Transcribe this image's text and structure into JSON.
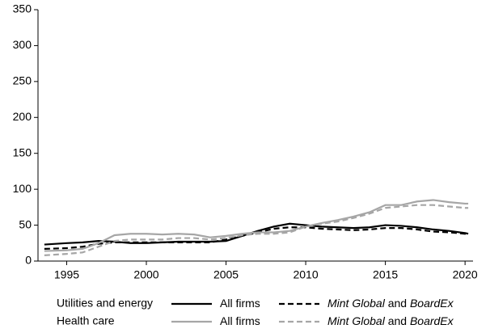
{
  "chart_data": {
    "type": "line",
    "x": [
      1993.6,
      1995,
      1996,
      1997,
      1998,
      1999,
      2000,
      2001,
      2002,
      2003,
      2004,
      2005,
      2006,
      2007,
      2008,
      2009,
      2010,
      2011,
      2012,
      2013,
      2014,
      2015,
      2016,
      2017,
      2018,
      2019,
      2020,
      2020.2
    ],
    "series": [
      {
        "row": 0,
        "column": 0,
        "color": "#000000",
        "dashed": false,
        "values": [
          23,
          25,
          26,
          28,
          27,
          25,
          25,
          26,
          27,
          27,
          27,
          28,
          35,
          42,
          48,
          52,
          50,
          48,
          47,
          46,
          47,
          50,
          49,
          47,
          44,
          42,
          39,
          38
        ]
      },
      {
        "row": 0,
        "column": 1,
        "color": "#000000",
        "dashed": true,
        "values": [
          17,
          18,
          20,
          24,
          26,
          26,
          26,
          26,
          26,
          26,
          26,
          30,
          35,
          40,
          45,
          47,
          47,
          45,
          44,
          43,
          44,
          46,
          46,
          44,
          41,
          40,
          38,
          38
        ]
      },
      {
        "row": 1,
        "column": 0,
        "color": "#a6a6a6",
        "dashed": false,
        "values": [
          14,
          15,
          17,
          25,
          36,
          38,
          38,
          37,
          38,
          37,
          33,
          35,
          38,
          40,
          40,
          42,
          48,
          53,
          57,
          62,
          68,
          78,
          78,
          83,
          85,
          82,
          80,
          80
        ]
      },
      {
        "row": 1,
        "column": 1,
        "color": "#a6a6a6",
        "dashed": true,
        "values": [
          8,
          10,
          12,
          20,
          28,
          30,
          30,
          30,
          32,
          32,
          30,
          32,
          36,
          38,
          38,
          40,
          48,
          52,
          55,
          60,
          66,
          74,
          76,
          78,
          78,
          76,
          74,
          74
        ]
      }
    ],
    "legend": {
      "rows": [
        "Utilities and energy",
        "Health care"
      ],
      "columns": [
        [
          {
            "text": "All firms",
            "italic": false
          }
        ],
        [
          {
            "text": "Mint Global",
            "italic": true
          },
          {
            "text": " and ",
            "italic": false
          },
          {
            "text": "BoardEx",
            "italic": true
          }
        ]
      ]
    },
    "xlim": [
      1993.2,
      2020.5
    ],
    "xticks": [
      1995,
      2000,
      2005,
      2010,
      2015,
      2020
    ],
    "ylim": [
      0,
      350
    ],
    "yticks": [
      0,
      50,
      100,
      150,
      200,
      250,
      300,
      350
    ]
  }
}
